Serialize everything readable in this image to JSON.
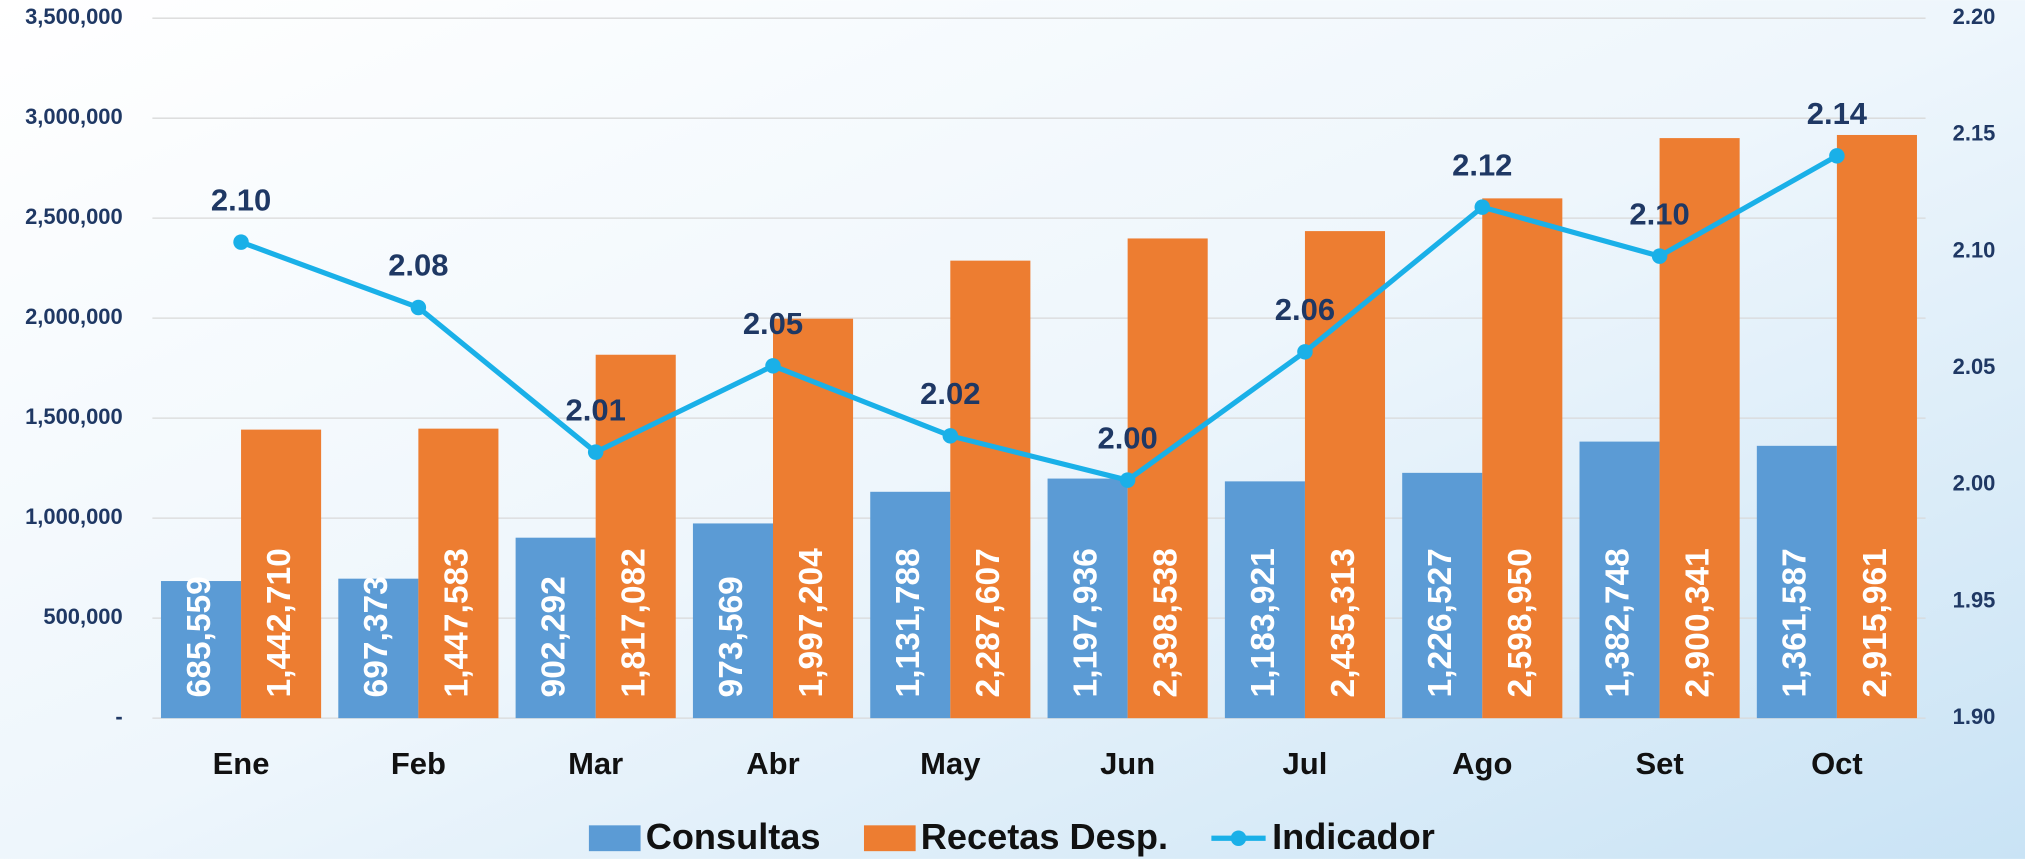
{
  "chart_data": {
    "type": "bar",
    "categories": [
      "Ene",
      "Feb",
      "Mar",
      "Abr",
      "May",
      "Jun",
      "Jul",
      "Ago",
      "Set",
      "Oct"
    ],
    "series": [
      {
        "name": "Consultas",
        "color": "#5b9bd5",
        "values": [
          685559,
          697373,
          902292,
          973569,
          1131788,
          1197936,
          1183921,
          1226527,
          1382748,
          1361587
        ],
        "value_labels": [
          "685,559",
          "697,373",
          "902,292",
          "973,569",
          "1,131,788",
          "1,197,936",
          "1,183,921",
          "1,226,527",
          "1,382,748",
          "1,361,587"
        ]
      },
      {
        "name": "Recetas Desp.",
        "color": "#ed7d31",
        "values": [
          1442710,
          1447583,
          1817082,
          1997204,
          2287607,
          2398538,
          2435313,
          2598950,
          2900341,
          2915961
        ],
        "value_labels": [
          "1,442,710",
          "1,447,583",
          "1,817,082",
          "1,997,204",
          "2,287,607",
          "2,398,538",
          "2,435,313",
          "2,598,950",
          "2,900,341",
          "2,915,961"
        ]
      },
      {
        "name": "Indicador",
        "color": "#1ab0e8",
        "type": "line",
        "axis": "y2",
        "values": [
          2.104,
          2.076,
          2.014,
          2.051,
          2.021,
          2.002,
          2.057,
          2.119,
          2.098,
          2.141
        ],
        "value_labels": [
          "2.10",
          "2.08",
          "2.01",
          "2.05",
          "2.02",
          "2.00",
          "2.06",
          "2.12",
          "2.10",
          "2.14"
        ]
      }
    ],
    "ylim": [
      0,
      3500000
    ],
    "yticks": [
      {
        "value": 0,
        "label": "-"
      },
      {
        "value": 500000,
        "label": "500,000"
      },
      {
        "value": 1000000,
        "label": "1,000,000"
      },
      {
        "value": 1500000,
        "label": "1,500,000"
      },
      {
        "value": 2000000,
        "label": "2,000,000"
      },
      {
        "value": 2500000,
        "label": "2,500,000"
      },
      {
        "value": 3000000,
        "label": "3,000,000"
      },
      {
        "value": 3500000,
        "label": "3,500,000"
      }
    ],
    "y2lim": [
      1.9,
      2.2
    ],
    "y2ticks": [
      {
        "value": 1.9,
        "label": "1.90"
      },
      1.95,
      {
        "value": 2.0,
        "label": "2.00"
      },
      2.05,
      {
        "value": 2.1,
        "label": "2.10"
      },
      2.15,
      {
        "value": 2.2,
        "label": "2.20"
      }
    ],
    "grid": true,
    "legend": "bottom"
  }
}
